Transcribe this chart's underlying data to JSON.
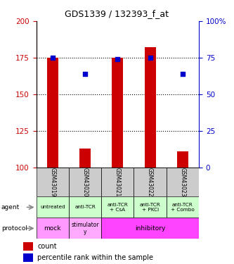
{
  "title": "GDS1339 / 132393_f_at",
  "samples": [
    "GSM43019",
    "GSM43020",
    "GSM43021",
    "GSM43022",
    "GSM43023"
  ],
  "bar_bottom": 100,
  "bar_tops": [
    175,
    113,
    175,
    182,
    111
  ],
  "bar_color": "#cc0000",
  "dot_left_values": [
    175,
    164,
    174,
    175,
    164
  ],
  "dot_color": "#0000cc",
  "ylim_left": [
    100,
    200
  ],
  "ylim_right": [
    0,
    100
  ],
  "yticks_left": [
    100,
    125,
    150,
    175,
    200
  ],
  "yticks_right": [
    0,
    25,
    50,
    75,
    100
  ],
  "grid_lines": [
    125,
    150,
    175
  ],
  "agent_labels": [
    "untreated",
    "anti-TCR",
    "anti-TCR\n+ CsA",
    "anti-TCR\n+ PKCi",
    "anti-TCR\n+ Combo"
  ],
  "protocol_mock_color": "#ff99ff",
  "protocol_stim_color": "#ffaaff",
  "protocol_inhib_color": "#ff44ff",
  "sample_bg": "#cccccc",
  "agent_bg": "#ccffcc",
  "left_axis_color": "#cc0000",
  "right_axis_color": "#0000cc"
}
